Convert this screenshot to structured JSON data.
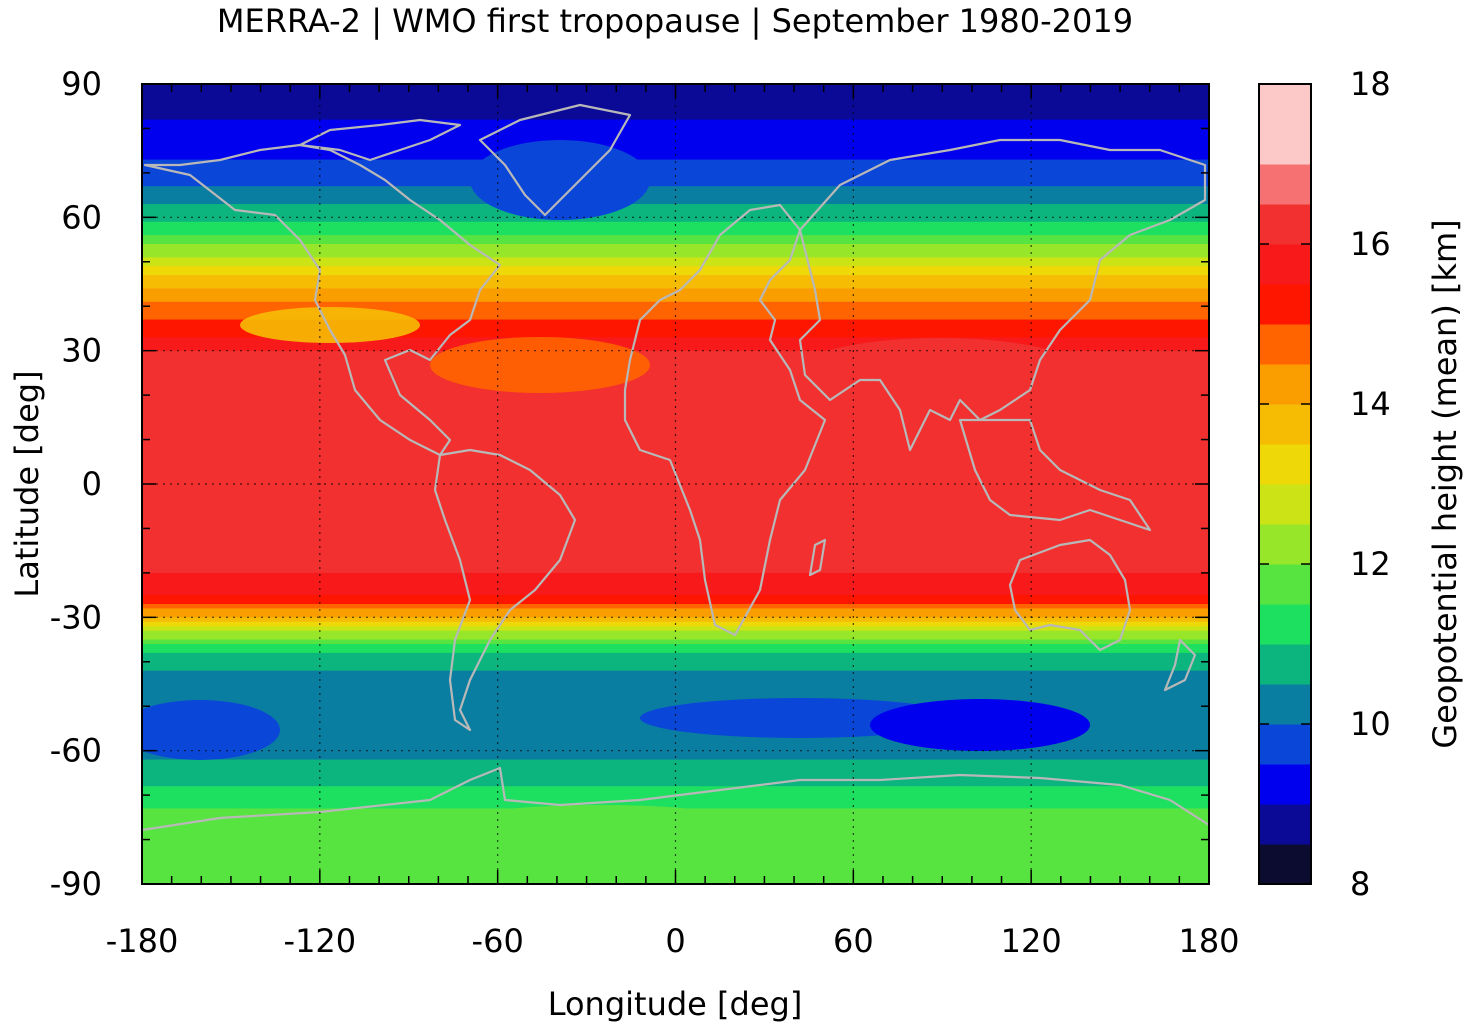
{
  "chart_data": {
    "type": "heatmap",
    "title": "MERRA-2 | WMO first tropopause | September 1980-2019",
    "xlabel": "Longitude [deg]",
    "ylabel": "Latitude [deg]",
    "xlim": [
      -180,
      180
    ],
    "ylim": [
      -90,
      90
    ],
    "x_ticks": [
      "-180",
      "-120",
      "-60",
      "0",
      "60",
      "120",
      "180"
    ],
    "y_ticks": [
      "90",
      "60",
      "30",
      "0",
      "-30",
      "-60",
      "-90"
    ],
    "x_tick_values": [
      -180,
      -120,
      -60,
      0,
      60,
      120,
      180
    ],
    "y_tick_values": [
      90,
      60,
      30,
      0,
      -30,
      -60,
      -90
    ],
    "grid": true,
    "overlay": "coastlines",
    "colorbar": {
      "label": "Geopotential height (mean) [km]",
      "range": [
        8,
        18
      ],
      "ticks": [
        "8",
        "10",
        "12",
        "14",
        "16",
        "18"
      ],
      "tick_values": [
        8,
        10,
        12,
        14,
        16,
        18
      ],
      "levels": [
        8,
        8.5,
        9,
        9.5,
        10,
        10.5,
        11,
        11.5,
        12,
        12.5,
        13,
        13.5,
        14,
        14.5,
        15,
        15.5,
        16,
        16.5,
        17,
        17.5,
        18
      ],
      "colors": [
        "#0c0c30",
        "#0a0a96",
        "#0000ee",
        "#0a46d8",
        "#0a7ea0",
        "#0cb47e",
        "#1ee060",
        "#58e440",
        "#98e62a",
        "#cce416",
        "#eed808",
        "#f6bc04",
        "#fa9e00",
        "#ff6400",
        "#ff1600",
        "#f81a1a",
        "#f23030",
        "#f67272",
        "#fcc8c8",
        "#fcc8c8"
      ]
    },
    "zonal_profile": {
      "description_lat": [
        90,
        84,
        80,
        75,
        70,
        65,
        60,
        55,
        50,
        45,
        40,
        35,
        30,
        20,
        10,
        0,
        -10,
        -20,
        -25,
        -30,
        -35,
        -40,
        -45,
        -50,
        -55,
        -60,
        -65,
        -70,
        -75,
        -80,
        -85,
        -90
      ],
      "height_km": [
        8.8,
        8.8,
        9.3,
        9.4,
        9.6,
        10.3,
        10.9,
        11.7,
        12.8,
        13.9,
        14.6,
        15.2,
        16.0,
        16.1,
        16.2,
        16.2,
        16.2,
        16.0,
        15.6,
        14.0,
        11.8,
        10.6,
        10.3,
        10.2,
        10.0,
        10.3,
        10.7,
        11.2,
        11.7,
        11.9,
        11.8,
        11.7
      ]
    }
  }
}
